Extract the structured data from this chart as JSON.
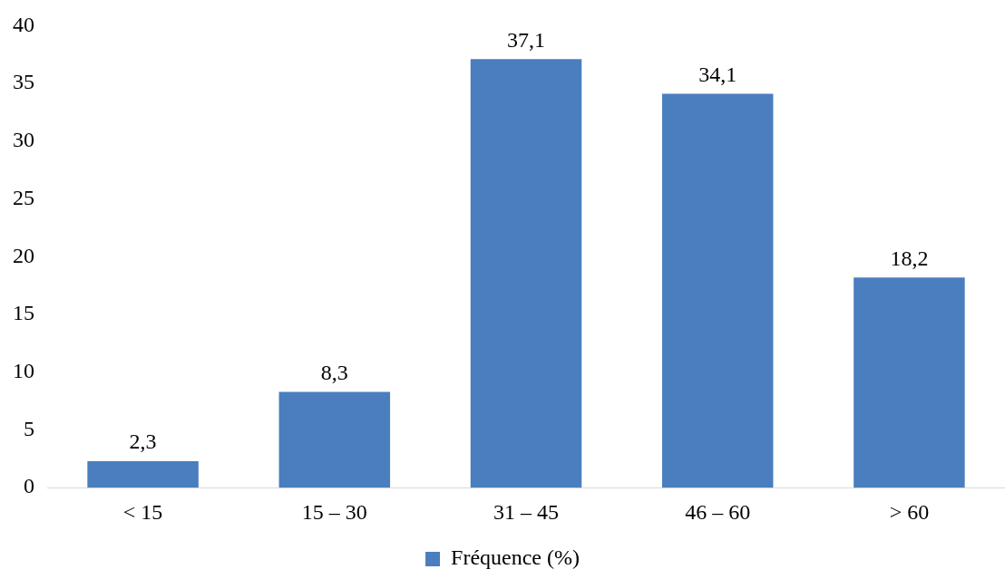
{
  "chart_data": {
    "type": "bar",
    "categories": [
      "< 15",
      "15 – 30",
      "31 – 45",
      "46 – 60",
      "> 60"
    ],
    "series": [
      {
        "name": "Fréquence (%)",
        "color": "#4a7ebf",
        "values": [
          2.3,
          8.3,
          37.1,
          34.1,
          18.2
        ],
        "value_labels": [
          "2,3",
          "8,3",
          "37,1",
          "34,1",
          "18,2"
        ]
      }
    ],
    "ylim": [
      0,
      40
    ],
    "yticks": [
      0,
      5,
      10,
      15,
      20,
      25,
      30,
      35,
      40
    ],
    "grid": false,
    "legend": "bottom"
  }
}
